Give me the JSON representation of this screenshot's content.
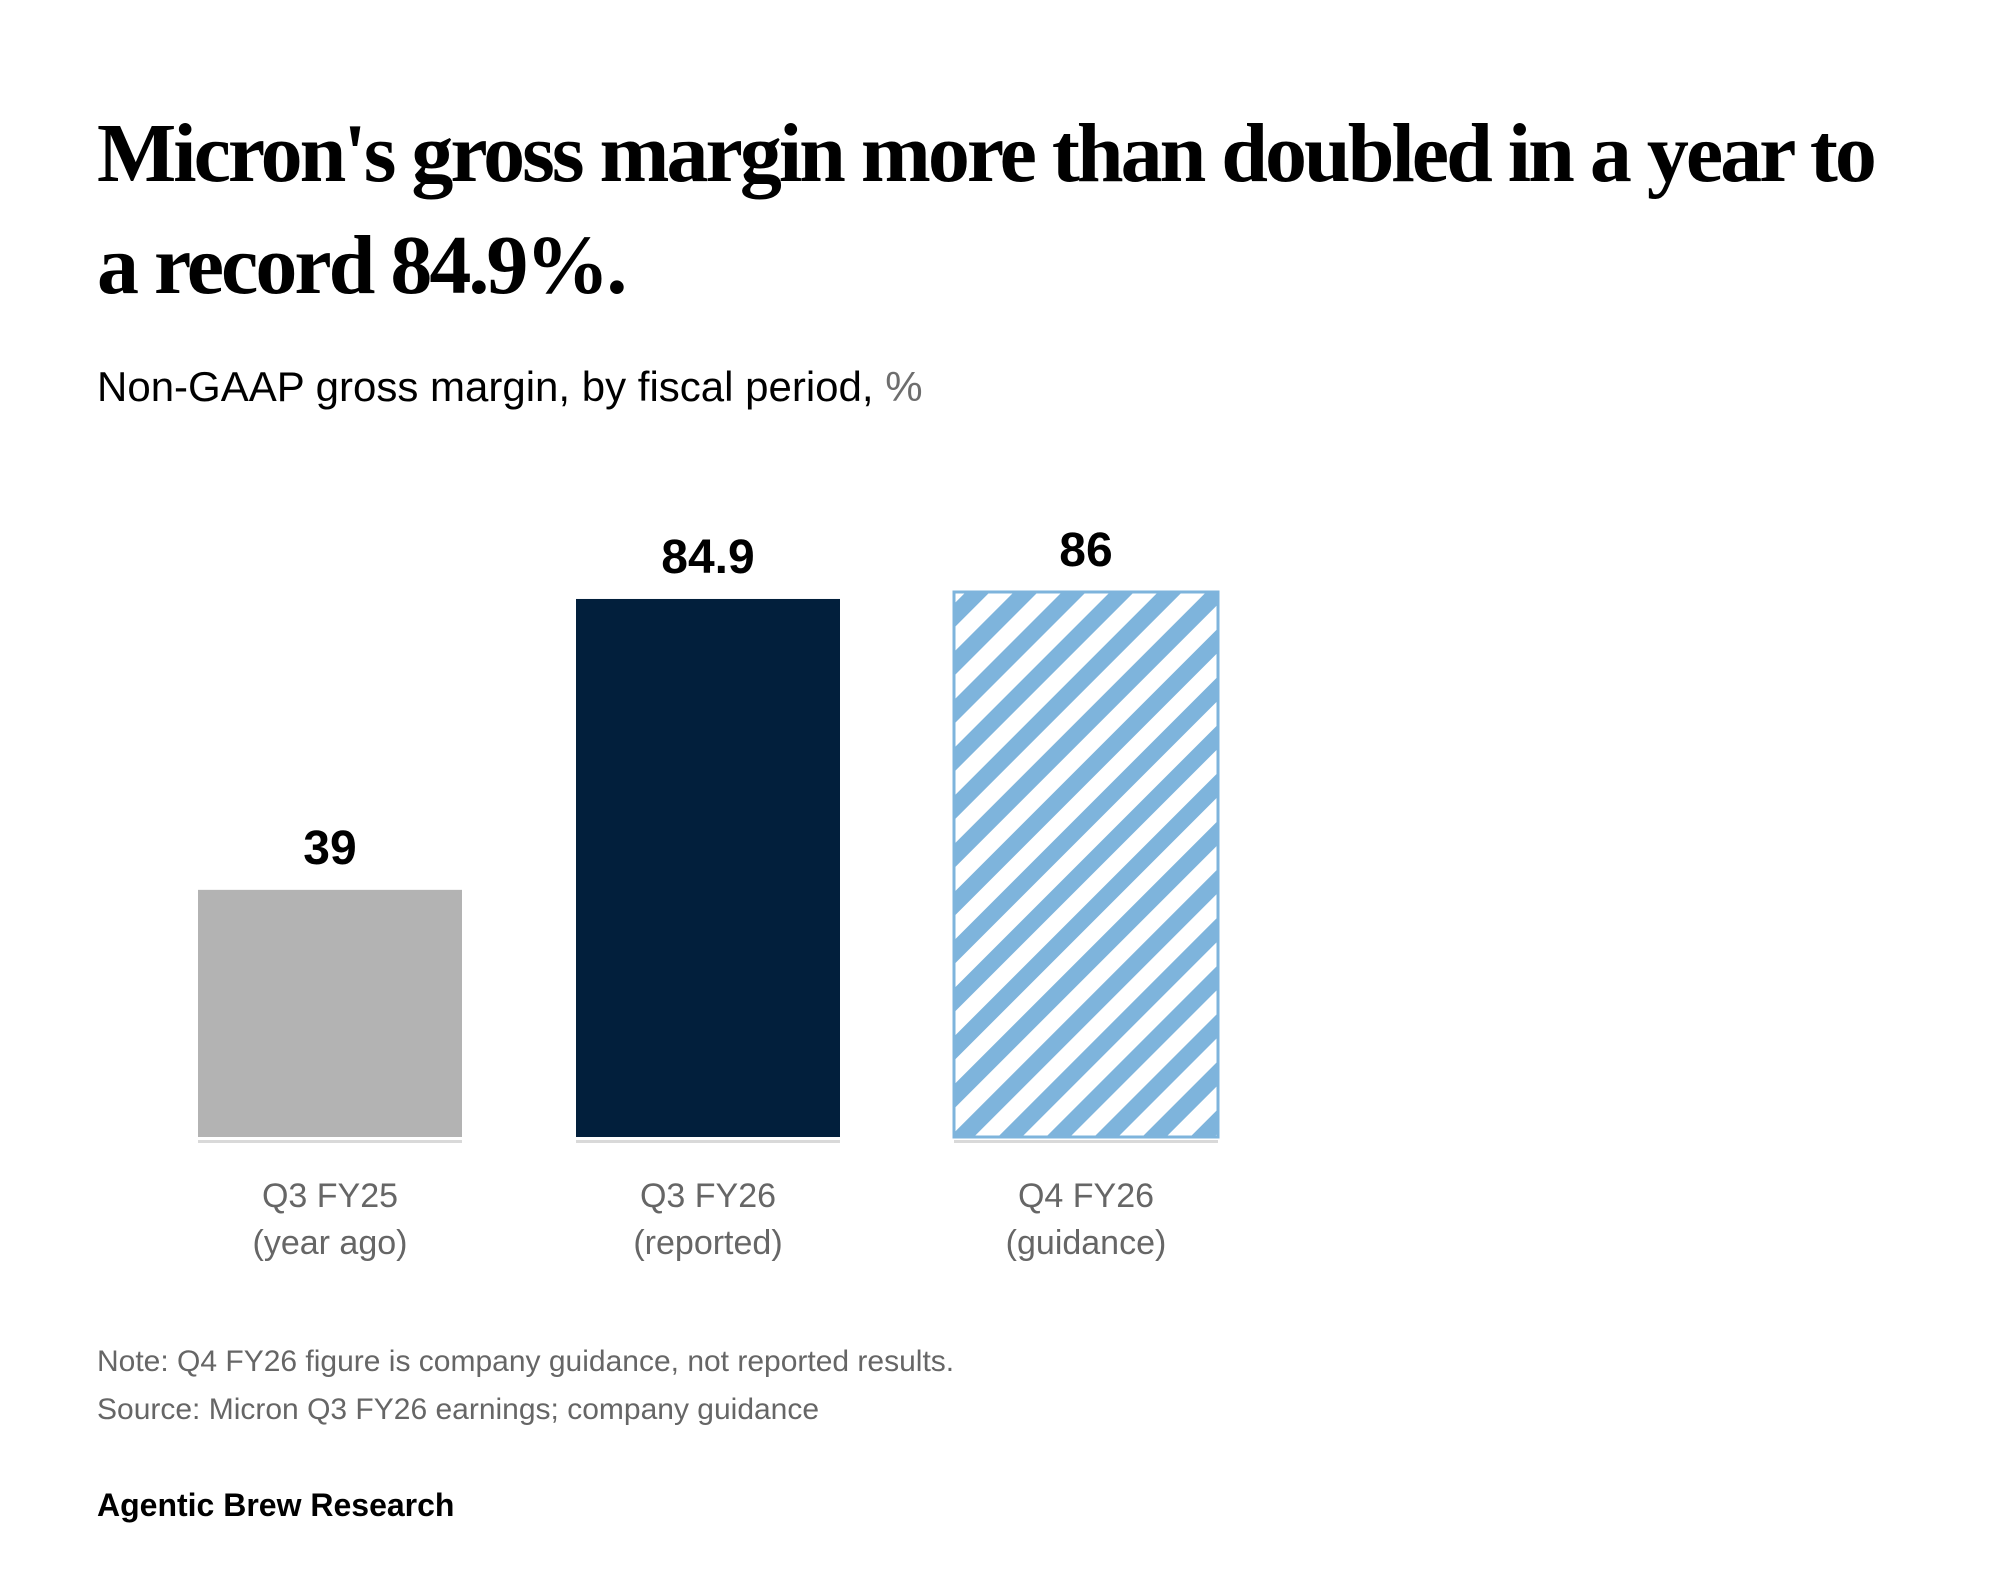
{
  "header": {
    "title": "Micron's gross margin more than doubled in a year to a record 84.9%.",
    "subtitle": "Non-GAAP gross margin, by fiscal period,",
    "subtitle_unit": "%"
  },
  "chart_data": {
    "type": "bar",
    "categories": [
      [
        "Q3 FY25",
        "(year ago)"
      ],
      [
        "Q3 FY26",
        "(reported)"
      ],
      [
        "Q4 FY26",
        "(guidance)"
      ]
    ],
    "values": [
      39,
      84.9,
      86
    ],
    "value_labels": [
      "39",
      "84.9",
      "86"
    ],
    "bar_styles": [
      "solid-gray",
      "solid-navy",
      "hatched-blue"
    ],
    "colors": {
      "gray": "#b3b3b3",
      "navy": "#021f3c",
      "hatch": "#7eb4dc",
      "baseline": "#d9d9d9"
    },
    "ylim": [
      0,
      86
    ],
    "grid": false,
    "legend": "none",
    "title": "Micron's gross margin more than doubled in a year to a record 84.9%.",
    "ylabel": "",
    "xlabel": ""
  },
  "footer": {
    "note": "Note: Q4 FY26 figure is company guidance, not reported results.",
    "source": "Source: Micron Q3 FY26 earnings; company guidance",
    "brand": "Agentic Brew Research"
  }
}
